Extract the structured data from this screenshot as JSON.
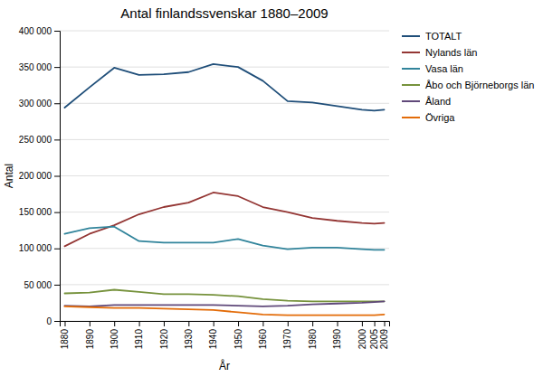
{
  "chart_data": {
    "type": "line",
    "title": "Antal finlandssvenskar 1880–2009",
    "xlabel": "År",
    "ylabel": "Antal",
    "x": [
      1880,
      1890,
      1900,
      1910,
      1920,
      1930,
      1940,
      1950,
      1960,
      1970,
      1980,
      1990,
      2000,
      2005,
      2009
    ],
    "series": [
      {
        "name": "TOTALT",
        "color": "#1F4E79",
        "values": [
          294000,
          322000,
          349000,
          339000,
          340000,
          343000,
          354000,
          350000,
          331000,
          303000,
          301000,
          296000,
          291000,
          290000,
          291000
        ]
      },
      {
        "name": "Nylands län",
        "color": "#943634",
        "values": [
          103000,
          120000,
          132000,
          147000,
          157000,
          163000,
          177000,
          172000,
          157000,
          150000,
          142000,
          138000,
          135000,
          134000,
          135000
        ]
      },
      {
        "name": "Vasa län",
        "color": "#31849B",
        "values": [
          120000,
          128000,
          130000,
          110000,
          108000,
          108000,
          108000,
          113000,
          104000,
          99000,
          101000,
          101000,
          99000,
          98000,
          98000
        ]
      },
      {
        "name": "Åbo och Björneborgs län",
        "color": "#76923C",
        "values": [
          38000,
          39000,
          43000,
          40000,
          37000,
          37000,
          36000,
          34000,
          30000,
          28000,
          27000,
          27000,
          27000,
          27000,
          27000
        ]
      },
      {
        "name": "Åland",
        "color": "#60497A",
        "values": [
          21000,
          20000,
          22000,
          22000,
          22000,
          22000,
          22000,
          21000,
          20000,
          21000,
          23000,
          24000,
          25000,
          26000,
          27000
        ]
      },
      {
        "name": "Övriga",
        "color": "#E36C09",
        "values": [
          20000,
          19000,
          18000,
          18000,
          17000,
          16000,
          15000,
          12000,
          9000,
          8000,
          8000,
          8000,
          8000,
          8000,
          9000
        ]
      }
    ],
    "xlim": [
      1878,
      2011
    ],
    "xticks": [
      1880,
      1890,
      1900,
      1910,
      1920,
      1930,
      1940,
      1950,
      1960,
      1970,
      1980,
      1990,
      2000,
      2005,
      2009
    ],
    "ylim": [
      0,
      400000
    ],
    "yticks": [
      0,
      {
        "value": 50000,
        "label": "50 000"
      },
      {
        "value": 100000,
        "label": "100 000"
      },
      {
        "value": 150000,
        "label": "150 000"
      },
      {
        "value": 200000,
        "label": "200 000"
      },
      {
        "value": 250000,
        "label": "250 000"
      },
      {
        "value": 300000,
        "label": "300 000"
      },
      {
        "value": 350000,
        "label": "350 000"
      },
      {
        "value": 400000,
        "label": "400 000"
      }
    ],
    "grid": true,
    "legend": "upper right"
  }
}
